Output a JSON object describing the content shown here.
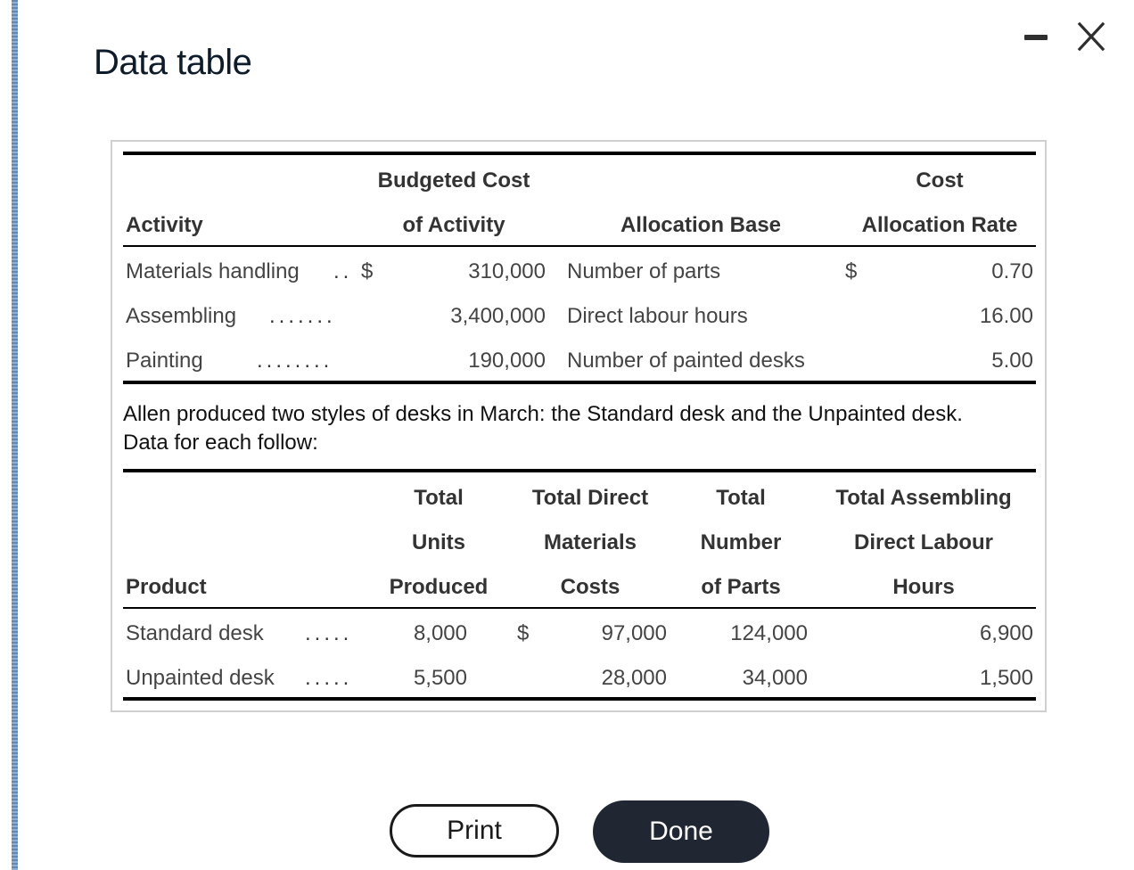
{
  "dialog": {
    "title": "Data table"
  },
  "activity_table": {
    "headers": {
      "activity": "Activity",
      "budgeted_cost_l1": "Budgeted Cost",
      "budgeted_cost_l2": "of Activity",
      "allocation_base": "Allocation Base",
      "rate_l1": "Cost",
      "rate_l2": "Allocation Rate"
    },
    "rows": [
      {
        "activity": "Materials handling",
        "leader": "..",
        "dollar": "$",
        "cost": "310,000",
        "base": "Number of parts",
        "rate_dollar": "$",
        "rate": "0.70"
      },
      {
        "activity": "Assembling",
        "leader": ".......",
        "dollar": "",
        "cost": "3,400,000",
        "base": "Direct labour hours",
        "rate_dollar": "",
        "rate": "16.00"
      },
      {
        "activity": "Painting",
        "leader": "........",
        "dollar": "",
        "cost": "190,000",
        "base": "Number of painted desks",
        "rate_dollar": "",
        "rate": "5.00"
      }
    ]
  },
  "paragraph": {
    "line1": "Allen produced two styles of desks in March: the Standard desk and the Unpainted desk.",
    "line2": "Data for each follow:"
  },
  "product_table": {
    "headers": {
      "product": "Product",
      "units_l1": "Total",
      "units_l2": "Units",
      "units_l3": "Produced",
      "dm_l1": "Total Direct",
      "dm_l2": "Materials",
      "dm_l3": "Costs",
      "parts_l1": "Total",
      "parts_l2": "Number",
      "parts_l3": "of Parts",
      "dl_l1": "Total Assembling",
      "dl_l2": "Direct Labour",
      "dl_l3": "Hours"
    },
    "rows": [
      {
        "product": "Standard desk",
        "leader": ".....",
        "units": "8,000",
        "dollar": "$",
        "dm": "97,000",
        "parts": "124,000",
        "dl": "6,900"
      },
      {
        "product": "Unpainted desk",
        "leader": ".....",
        "units": "5,500",
        "dollar": "",
        "dm": "28,000",
        "parts": "34,000",
        "dl": "1,500"
      }
    ]
  },
  "buttons": {
    "print": "Print",
    "done": "Done"
  }
}
